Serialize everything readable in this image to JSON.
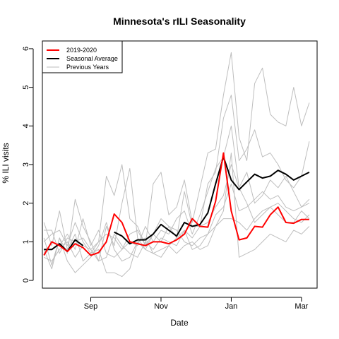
{
  "chart_data": {
    "type": "line",
    "title": "Minnesota's rILI Seasonality",
    "xlabel": "Date",
    "ylabel": "% ILI visits",
    "y_ticks": [
      "0",
      "1",
      "2",
      "3",
      "4",
      "5",
      "6"
    ],
    "x_tick_labels": [
      {
        "label": "Sep",
        "week": 6
      },
      {
        "label": "Nov",
        "week": 15
      },
      {
        "label": "Jan",
        "week": 24
      },
      {
        "label": "Mar",
        "week": 33
      }
    ],
    "ylim": [
      -0.2,
      6.2
    ],
    "xlim": [
      -0.2,
      35
    ],
    "x_unit": "week",
    "legend": {
      "position": "top-left",
      "entries": [
        {
          "label": "2019-2020",
          "color": "#ff0000"
        },
        {
          "label": "Seasonal Average",
          "color": "#000000"
        },
        {
          "label": "Previous Years",
          "color": "#bebebe"
        }
      ]
    },
    "series": [
      {
        "name": "Previous Years",
        "color": "#bebebe",
        "width": 1,
        "x": [
          0,
          1,
          2,
          3,
          4,
          5,
          6,
          7,
          8,
          9,
          10,
          11,
          12,
          13,
          14,
          15,
          16,
          17,
          18,
          19,
          20,
          21,
          22,
          23,
          24,
          25,
          26,
          27,
          28,
          29,
          30,
          31,
          32,
          33,
          34
        ],
        "y": [
          1.5,
          0.9,
          1.8,
          0.8,
          1.2,
          0.5,
          0.7,
          1.0,
          2.7,
          2.2,
          3.0,
          1.6,
          1.4,
          0.9,
          2.5,
          2.8,
          1.7,
          1.9,
          2.6,
          1.5,
          2.4,
          3.3,
          3.4,
          4.8,
          5.9,
          3.7,
          3.1,
          5.1,
          5.5,
          4.3,
          4.1,
          4.0,
          5.0,
          4.0,
          4.6
        ]
      },
      {
        "name": "Previous Years",
        "color": "#bebebe",
        "width": 1,
        "x": [
          0,
          1,
          2,
          3,
          4,
          5,
          6,
          7,
          8,
          9,
          10,
          11,
          12,
          13,
          14,
          15,
          16,
          17,
          18,
          19,
          20,
          21,
          22,
          23,
          24,
          25,
          26,
          27,
          28,
          29,
          30,
          31,
          32,
          33,
          34
        ],
        "y": [
          1.1,
          0.4,
          1.1,
          0.7,
          2.1,
          1.4,
          1.0,
          0.5,
          1.4,
          0.9,
          2.0,
          2.9,
          1.1,
          0.8,
          1.2,
          1.6,
          1.4,
          1.1,
          2.3,
          1.4,
          1.4,
          2.5,
          2.8,
          4.2,
          4.8,
          3.1,
          3.4,
          3.9,
          3.2,
          3.3,
          3.0,
          2.6,
          2.4,
          2.7,
          3.6
        ]
      },
      {
        "name": "Previous Years",
        "color": "#bebebe",
        "width": 1,
        "x": [
          0,
          1,
          2,
          3,
          4,
          5,
          6,
          7,
          8,
          9,
          10,
          11,
          12,
          13,
          14,
          15,
          16,
          17,
          18,
          19,
          20,
          21,
          22,
          23,
          24,
          25,
          26,
          27,
          28,
          29,
          30,
          31,
          32,
          33,
          34
        ],
        "y": [
          0.7,
          1.0,
          0.9,
          1.2,
          0.8,
          1.6,
          0.9,
          1.3,
          0.7,
          0.6,
          0.8,
          1.0,
          0.9,
          1.4,
          1.0,
          1.3,
          1.2,
          1.6,
          1.8,
          1.2,
          1.7,
          2.3,
          2.9,
          3.2,
          4.0,
          2.4,
          2.8,
          2.0,
          2.2,
          2.6,
          2.4,
          2.7,
          2.3,
          1.9,
          2.1
        ]
      },
      {
        "name": "Previous Years",
        "color": "#bebebe",
        "width": 1,
        "x": [
          0,
          1,
          2,
          3,
          4,
          5,
          6,
          7,
          8,
          9,
          10,
          11,
          12,
          13,
          14,
          15,
          16,
          17,
          18,
          19,
          20,
          21,
          22,
          23,
          24,
          25,
          26,
          27,
          28,
          29,
          30,
          31,
          32,
          33,
          34
        ],
        "y": [
          0.6,
          0.5,
          0.8,
          1.0,
          0.6,
          0.9,
          0.8,
          0.5,
          0.6,
          1.2,
          0.9,
          0.7,
          0.6,
          1.0,
          0.8,
          1.1,
          1.0,
          0.9,
          1.3,
          1.1,
          1.4,
          1.5,
          1.9,
          2.2,
          3.0,
          2.4,
          2.0,
          1.5,
          1.7,
          1.9,
          2.0,
          1.8,
          1.6,
          1.5,
          1.7
        ]
      },
      {
        "name": "Previous Years",
        "color": "#bebebe",
        "width": 1,
        "x": [
          0,
          1,
          2,
          3,
          4,
          5,
          6,
          7,
          8,
          9,
          10,
          11,
          12,
          13,
          14,
          15,
          16,
          17,
          18,
          19,
          20,
          21,
          22,
          23,
          24,
          25,
          26,
          27,
          28,
          29,
          30,
          31,
          32,
          33,
          34
        ],
        "y": [
          1.0,
          1.2,
          1.3,
          0.9,
          1.5,
          1.0,
          0.7,
          0.8,
          0.2,
          0.2,
          0.1,
          0.3,
          1.0,
          0.8,
          0.7,
          0.8,
          0.9,
          1.1,
          1.3,
          0.8,
          0.9,
          1.2,
          1.7,
          1.9,
          2.5,
          1.8,
          1.9,
          2.1,
          2.3,
          2.1,
          2.2,
          1.9,
          1.8,
          1.9,
          2.0
        ]
      },
      {
        "name": "Previous Years",
        "color": "#bebebe",
        "width": 1,
        "x": [
          0,
          1,
          2,
          3,
          4,
          5,
          6,
          7,
          8,
          9,
          10,
          11,
          12,
          13,
          14,
          15,
          16,
          17,
          18,
          19,
          20,
          21,
          22,
          23,
          24,
          25,
          26,
          27,
          28,
          29,
          30,
          31,
          32,
          33,
          34
        ],
        "y": [
          0.8,
          0.3,
          1.1,
          0.5,
          0.2,
          0.4,
          0.6,
          0.9,
          1.5,
          0.8,
          0.5,
          0.6,
          1.0,
          1.1,
          0.7,
          0.6,
          0.9,
          0.7,
          0.9,
          1.0,
          0.8,
          0.9,
          1.4,
          1.8,
          3.3,
          0.6,
          0.7,
          0.8,
          1.0,
          1.2,
          1.1,
          1.0,
          1.3,
          1.2,
          1.4
        ]
      },
      {
        "name": "Previous Years",
        "color": "#bebebe",
        "width": 1,
        "x": [
          0,
          1,
          2,
          3,
          4,
          5,
          6,
          7,
          8,
          9,
          10,
          11,
          12,
          13,
          14,
          15,
          16,
          17,
          18,
          19,
          20,
          21,
          22,
          23,
          24,
          25,
          26,
          27,
          28,
          29,
          30,
          31,
          32,
          33,
          34
        ],
        "y": [
          1.3,
          1.3,
          0.7,
          1.1,
          1.0,
          1.1,
          0.8,
          1.0,
          1.2,
          1.1,
          0.8,
          1.2,
          1.3,
          0.9,
          1.2,
          1.0,
          1.4,
          1.3,
          1.0,
          0.9,
          1.1,
          1.2,
          1.4,
          1.6,
          1.6,
          1.5,
          1.3,
          1.6,
          1.8,
          1.9,
          1.7,
          1.5,
          1.5,
          1.8,
          1.6
        ]
      },
      {
        "name": "Seasonal Average",
        "color": "#000000",
        "width": 2,
        "x": [
          0,
          1,
          2,
          3,
          4,
          5,
          9,
          10,
          11,
          12,
          13,
          14,
          15,
          16,
          17,
          18,
          19,
          20,
          21,
          22,
          23,
          24,
          25,
          26,
          27,
          28,
          29,
          30,
          31,
          32,
          33,
          34
        ],
        "y": [
          0.8,
          0.8,
          0.95,
          0.75,
          1.05,
          0.9,
          1.25,
          1.15,
          0.95,
          1.05,
          1.05,
          1.2,
          1.45,
          1.3,
          1.15,
          1.5,
          1.4,
          1.45,
          1.75,
          2.5,
          3.2,
          2.6,
          2.35,
          2.55,
          2.75,
          2.65,
          2.7,
          2.85,
          2.75,
          2.6,
          2.7,
          2.8
        ]
      },
      {
        "name": "2019-2020",
        "color": "#ff0000",
        "width": 2,
        "x": [
          0,
          1,
          2,
          3,
          4,
          5,
          6,
          7,
          8,
          9,
          10,
          11,
          12,
          13,
          14,
          15,
          16,
          17,
          18,
          19,
          20,
          21,
          22,
          23,
          24,
          25,
          26,
          27,
          28,
          29,
          30,
          31,
          32,
          33,
          34
        ],
        "y": [
          0.65,
          1.0,
          0.9,
          0.75,
          0.95,
          0.85,
          0.65,
          0.72,
          1.0,
          1.72,
          1.5,
          1.0,
          0.95,
          0.9,
          1.0,
          1.0,
          0.95,
          1.05,
          1.2,
          1.6,
          1.4,
          1.38,
          2.05,
          3.3,
          1.8,
          1.05,
          1.1,
          1.4,
          1.38,
          1.7,
          1.9,
          1.5,
          1.48,
          1.58,
          1.58
        ]
      }
    ]
  }
}
